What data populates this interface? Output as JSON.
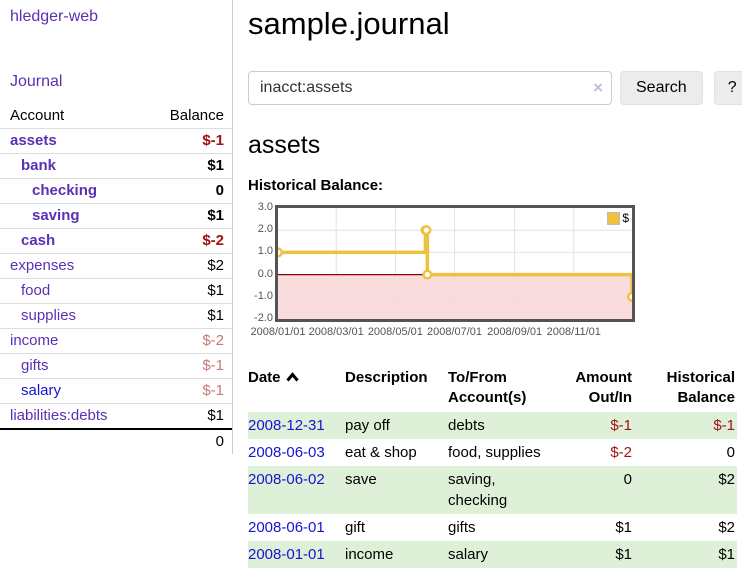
{
  "app": {
    "brand": "hledger-web",
    "nav": {
      "journal": "Journal"
    }
  },
  "sidebar": {
    "accounts_table": {
      "headers": {
        "account": "Account",
        "balance": "Balance"
      },
      "rows": [
        {
          "name": "assets",
          "balance": "$-1",
          "depth": 0,
          "bold": true,
          "neg": "strong"
        },
        {
          "name": "bank",
          "balance": "$1",
          "depth": 1,
          "bold": true,
          "neg": ""
        },
        {
          "name": "checking",
          "balance": "0",
          "depth": 2,
          "bold": true,
          "neg": ""
        },
        {
          "name": "saving",
          "balance": "$1",
          "depth": 2,
          "bold": true,
          "neg": ""
        },
        {
          "name": "cash",
          "balance": "$-2",
          "depth": 1,
          "bold": true,
          "neg": "strong"
        },
        {
          "name": "expenses",
          "balance": "$2",
          "depth": 0,
          "bold": false,
          "neg": ""
        },
        {
          "name": "food",
          "balance": "$1",
          "depth": 1,
          "bold": false,
          "neg": ""
        },
        {
          "name": "supplies",
          "balance": "$1",
          "depth": 1,
          "bold": false,
          "neg": ""
        },
        {
          "name": "income",
          "balance": "$-2",
          "depth": 0,
          "bold": false,
          "neg": "dim"
        },
        {
          "name": "gifts",
          "balance": "$-1",
          "depth": 1,
          "bold": false,
          "neg": "dim"
        },
        {
          "name": "salary",
          "balance": "$-1",
          "depth": 1,
          "bold": false,
          "neg": "dim",
          "link": "blue"
        },
        {
          "name": "liabilities:debts",
          "balance": "$1",
          "depth": 0,
          "bold": false,
          "neg": ""
        }
      ],
      "total": "0"
    }
  },
  "main": {
    "title": "sample.journal",
    "search": {
      "value": "inacct:assets",
      "clear_icon": "×",
      "button_label": "Search",
      "help_label": "?"
    },
    "account_heading": "assets",
    "chart_heading": "Historical Balance:"
  },
  "chart_data": {
    "type": "line",
    "title": "Historical Balance",
    "step": true,
    "legend": [
      {
        "label": "$",
        "color": "#edc240"
      }
    ],
    "x_ticks": [
      "2008/01/01",
      "2008/03/01",
      "2008/05/01",
      "2008/07/01",
      "2008/09/01",
      "2008/11/01"
    ],
    "y_ticks": [
      3.0,
      2.0,
      1.0,
      0.0,
      -1.0,
      -2.0
    ],
    "xlim": [
      "2008-01-01",
      "2008-12-31"
    ],
    "ylim": [
      -2.0,
      3.0
    ],
    "grid": true,
    "legend_position": "top-right",
    "zero_line_color": "#8b0000",
    "negative_region_color": "#fbdcdc",
    "series": [
      {
        "name": "$",
        "color": "#edc240",
        "points": [
          {
            "date": "2008-01-01",
            "value": 1.0
          },
          {
            "date": "2008-06-01",
            "value": 2.0
          },
          {
            "date": "2008-06-02",
            "value": 2.0
          },
          {
            "date": "2008-06-03",
            "value": 0.0
          },
          {
            "date": "2008-12-31",
            "value": -1.0
          }
        ]
      }
    ]
  },
  "register": {
    "headers": {
      "date": "Date",
      "description": "Description",
      "tofrom": "To/From Account(s)",
      "amount": "Amount Out/In",
      "balance": "Historical Balance"
    },
    "sort_icon": "chevron-up",
    "rows": [
      {
        "date": "2008-12-31",
        "description": "pay off",
        "accounts": "debts",
        "amount": "$-1",
        "balance": "$-1",
        "amount_neg": true,
        "balance_neg": true
      },
      {
        "date": "2008-06-03",
        "description": "eat & shop",
        "accounts": "food, supplies",
        "amount": "$-2",
        "balance": "0",
        "amount_neg": true,
        "balance_neg": false
      },
      {
        "date": "2008-06-02",
        "description": "save",
        "accounts": "saving, checking",
        "amount": "0",
        "balance": "$2",
        "amount_neg": false,
        "balance_neg": false
      },
      {
        "date": "2008-06-01",
        "description": "gift",
        "accounts": "gifts",
        "amount": "$1",
        "balance": "$2",
        "amount_neg": false,
        "balance_neg": false
      },
      {
        "date": "2008-01-01",
        "description": "income",
        "accounts": "salary",
        "amount": "$1",
        "balance": "$1",
        "amount_neg": false,
        "balance_neg": false
      }
    ]
  }
}
